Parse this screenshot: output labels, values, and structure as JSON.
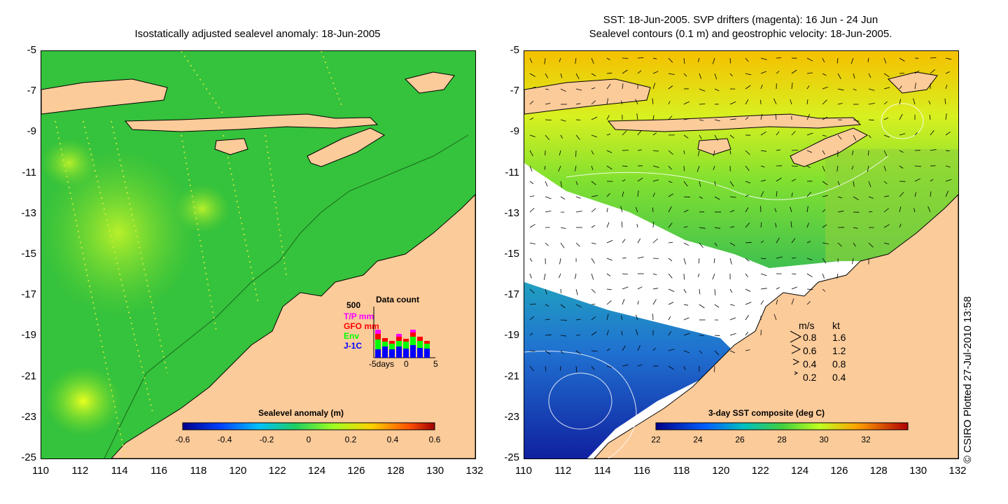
{
  "left_map": {
    "title": "Isostatically adjusted sealevel anomaly: 18-Jun-2005",
    "y_ticks": [
      "-5",
      "-7",
      "-9",
      "-11",
      "-13",
      "-15",
      "-17",
      "-19",
      "-21",
      "-23",
      "-25"
    ],
    "x_ticks": [
      "110",
      "112",
      "114",
      "116",
      "118",
      "120",
      "122",
      "124",
      "126",
      "128",
      "130",
      "132"
    ],
    "colorbar": {
      "title": "Sealevel anomaly (m)",
      "labels": [
        "-0.6",
        "-0.4",
        "-0.2",
        "0",
        "0.2",
        "0.4",
        "0.6"
      ]
    },
    "data_count": {
      "title": "Data count",
      "max_label": "500",
      "series": [
        {
          "name": "T/P mm",
          "color": "#ff00ff"
        },
        {
          "name": "GFO mm",
          "color": "#ff0000"
        },
        {
          "name": "Env",
          "color": "#00ff00"
        },
        {
          "name": "J-1C",
          "color": "#0000ff"
        }
      ],
      "x_labels": [
        "-5days",
        "0",
        "5"
      ]
    },
    "colors": {
      "ocean": "#2fbf3a",
      "land": "#fccb9a"
    }
  },
  "right_map": {
    "title_line1": "SST: 18-Jun-2005. SVP drifters (magenta): 16 Jun - 24 Jun",
    "title_line2": "Sealevel contours (0.1 m) and geostrophic velocity: 18-Jun-2005.",
    "y_ticks": [
      "-5",
      "-7",
      "-9",
      "-11",
      "-13",
      "-15",
      "-17",
      "-19",
      "-21",
      "-23",
      "-25"
    ],
    "x_ticks": [
      "110",
      "112",
      "114",
      "116",
      "118",
      "120",
      "122",
      "124",
      "126",
      "128",
      "130",
      "132"
    ],
    "colorbar": {
      "title": "3-day SST composite (deg C)",
      "labels": [
        "22",
        "24",
        "26",
        "28",
        "30",
        "32"
      ]
    },
    "velocity_legend": {
      "header_ms": "m/s",
      "header_kt": "kt",
      "rows": [
        {
          "ms": "0.8",
          "kt": "1.6"
        },
        {
          "ms": "0.6",
          "kt": "1.2"
        },
        {
          "ms": "0.4",
          "kt": "0.8"
        },
        {
          "ms": "0.2",
          "kt": "0.4"
        }
      ]
    }
  },
  "credit": "© CSIRO Plotted 27-Jul-2010 13:58"
}
